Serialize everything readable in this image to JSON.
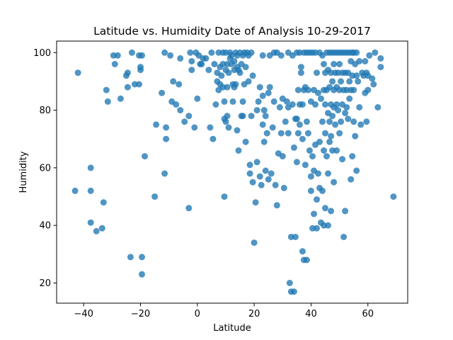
{
  "chart_data": {
    "type": "scatter",
    "title": "Latitude vs. Humidity Date of Analysis 10-29-2017",
    "xlabel": "Latitude",
    "ylabel": "Humidity",
    "xlim": [
      -49.5,
      74
    ],
    "ylim": [
      13,
      104
    ],
    "xticks": [
      -40,
      -20,
      0,
      20,
      40,
      60
    ],
    "yticks": [
      20,
      40,
      60,
      80,
      100
    ],
    "xtick_labels": [
      "−40",
      "−20",
      "0",
      "20",
      "40",
      "60"
    ],
    "ytick_labels": [
      "20",
      "40",
      "60",
      "80",
      "100"
    ],
    "grid": false,
    "legend": "none",
    "marker_color": "#1f77b4",
    "points": [
      [
        -43,
        52
      ],
      [
        -42,
        93
      ],
      [
        -37.5,
        60
      ],
      [
        -37.5,
        52
      ],
      [
        -37.5,
        41
      ],
      [
        -35.5,
        38
      ],
      [
        -33.5,
        39
      ],
      [
        -33,
        48
      ],
      [
        -32,
        87
      ],
      [
        -31.5,
        83
      ],
      [
        -29.5,
        99
      ],
      [
        -29,
        96
      ],
      [
        -28,
        99
      ],
      [
        -27,
        84
      ],
      [
        -25,
        92
      ],
      [
        -24.5,
        93
      ],
      [
        -24.5,
        88
      ],
      [
        -23.5,
        29
      ],
      [
        -23,
        100
      ],
      [
        -22,
        89
      ],
      [
        -20.5,
        99
      ],
      [
        -20,
        95
      ],
      [
        -20,
        94
      ],
      [
        -20.5,
        89
      ],
      [
        -19.5,
        99
      ],
      [
        -19.5,
        29
      ],
      [
        -19.5,
        23
      ],
      [
        -18.5,
        64
      ],
      [
        -15,
        50
      ],
      [
        -14.5,
        75
      ],
      [
        -12.5,
        86
      ],
      [
        -11.5,
        100
      ],
      [
        -11.5,
        58
      ],
      [
        -11,
        74
      ],
      [
        -11,
        70
      ],
      [
        -9.5,
        99
      ],
      [
        -9,
        83
      ],
      [
        -8.5,
        90
      ],
      [
        -7.5,
        82
      ],
      [
        -6.5,
        89
      ],
      [
        -6,
        98
      ],
      [
        -6,
        80
      ],
      [
        -4.5,
        76
      ],
      [
        -3,
        78
      ],
      [
        -3,
        46
      ],
      [
        -2.5,
        100
      ],
      [
        -2,
        97
      ],
      [
        -2,
        94
      ],
      [
        -1,
        74
      ],
      [
        -0.5,
        100
      ],
      [
        0,
        84
      ],
      [
        0.5,
        99
      ],
      [
        1,
        96
      ],
      [
        1.5,
        96
      ],
      [
        2,
        98
      ],
      [
        3,
        98
      ],
      [
        4,
        94
      ],
      [
        4.5,
        74
      ],
      [
        5,
        100
      ],
      [
        5.5,
        70
      ],
      [
        6,
        96
      ],
      [
        6.5,
        82
      ],
      [
        7,
        93
      ],
      [
        7,
        90
      ],
      [
        7.5,
        100
      ],
      [
        7.5,
        87
      ],
      [
        8,
        95
      ],
      [
        8,
        89
      ],
      [
        8.5,
        92
      ],
      [
        9,
        100
      ],
      [
        9,
        96
      ],
      [
        9,
        88
      ],
      [
        9.5,
        83
      ],
      [
        9.5,
        77
      ],
      [
        9.5,
        50
      ],
      [
        10,
        100
      ],
      [
        10,
        94
      ],
      [
        10,
        76
      ],
      [
        10.5,
        96
      ],
      [
        10.5,
        88
      ],
      [
        10.5,
        78
      ],
      [
        11,
        93
      ],
      [
        11,
        74
      ],
      [
        11.5,
        100
      ],
      [
        11.5,
        98
      ],
      [
        12,
        99
      ],
      [
        12,
        96
      ],
      [
        12.5,
        89
      ],
      [
        12.5,
        83
      ],
      [
        13,
        97
      ],
      [
        13,
        94
      ],
      [
        13,
        88
      ],
      [
        13.5,
        100
      ],
      [
        13.5,
        89
      ],
      [
        14,
        99
      ],
      [
        14,
        95
      ],
      [
        14,
        73
      ],
      [
        14.5,
        94
      ],
      [
        14.5,
        66
      ],
      [
        15,
        100
      ],
      [
        15,
        93
      ],
      [
        15.5,
        96
      ],
      [
        15.5,
        78
      ],
      [
        16,
        99
      ],
      [
        16,
        83
      ],
      [
        16,
        78
      ],
      [
        16.5,
        100
      ],
      [
        16.5,
        89
      ],
      [
        17,
        95
      ],
      [
        17,
        69
      ],
      [
        17.5,
        100
      ],
      [
        18,
        99
      ],
      [
        18,
        90
      ],
      [
        18.5,
        61
      ],
      [
        18.5,
        58
      ],
      [
        19,
        100
      ],
      [
        19,
        78
      ],
      [
        19.5,
        92
      ],
      [
        19.5,
        55
      ],
      [
        20,
        34
      ],
      [
        20.5,
        48
      ],
      [
        21,
        80
      ],
      [
        21,
        62
      ],
      [
        21.5,
        83
      ],
      [
        22,
        88
      ],
      [
        22,
        57
      ],
      [
        22.5,
        54
      ],
      [
        23,
        99
      ],
      [
        23,
        85
      ],
      [
        23,
        75
      ],
      [
        23.5,
        80
      ],
      [
        23.5,
        69
      ],
      [
        24,
        78
      ],
      [
        24,
        59
      ],
      [
        24.5,
        72
      ],
      [
        25,
        86
      ],
      [
        25,
        56
      ],
      [
        25.5,
        99
      ],
      [
        25.5,
        88
      ],
      [
        26,
        58
      ],
      [
        26.5,
        74
      ],
      [
        27,
        100
      ],
      [
        27,
        83
      ],
      [
        27.5,
        54
      ],
      [
        28,
        100
      ],
      [
        28,
        47
      ],
      [
        28.5,
        65
      ],
      [
        29,
        81
      ],
      [
        29.5,
        99
      ],
      [
        29.5,
        72
      ],
      [
        30,
        84
      ],
      [
        30,
        64
      ],
      [
        30.5,
        53
      ],
      [
        31,
        76
      ],
      [
        31.5,
        83
      ],
      [
        32,
        100
      ],
      [
        32,
        81
      ],
      [
        32,
        72
      ],
      [
        32.5,
        20
      ],
      [
        33,
        36
      ],
      [
        33,
        17
      ],
      [
        33.5,
        99
      ],
      [
        33.5,
        82
      ],
      [
        34,
        67
      ],
      [
        34,
        17
      ],
      [
        34.5,
        77
      ],
      [
        34.5,
        36
      ],
      [
        35,
        100
      ],
      [
        35,
        77
      ],
      [
        35,
        62
      ],
      [
        35.5,
        87
      ],
      [
        35.5,
        72
      ],
      [
        36,
        100
      ],
      [
        36,
        82
      ],
      [
        36,
        75
      ],
      [
        36.5,
        95
      ],
      [
        36.5,
        93
      ],
      [
        37,
        82
      ],
      [
        37,
        70
      ],
      [
        37,
        31
      ],
      [
        37.5,
        100
      ],
      [
        37.5,
        87
      ],
      [
        37.5,
        28
      ],
      [
        38,
        88
      ],
      [
        38,
        61
      ],
      [
        38.5,
        100
      ],
      [
        38.5,
        76
      ],
      [
        38.5,
        28
      ],
      [
        39,
        87
      ],
      [
        39,
        72
      ],
      [
        39.5,
        100
      ],
      [
        39.5,
        66
      ],
      [
        40,
        83
      ],
      [
        40,
        57
      ],
      [
        40,
        52
      ],
      [
        40.5,
        100
      ],
      [
        40.5,
        64
      ],
      [
        40.5,
        39
      ],
      [
        41,
        87
      ],
      [
        41,
        59
      ],
      [
        41,
        44
      ],
      [
        41.5,
        100
      ],
      [
        41.5,
        82
      ],
      [
        41.5,
        68
      ],
      [
        42,
        93
      ],
      [
        42,
        49
      ],
      [
        42,
        39
      ],
      [
        42.5,
        86
      ],
      [
        42.5,
        58
      ],
      [
        43,
        100
      ],
      [
        43,
        69
      ],
      [
        43,
        53
      ],
      [
        43.5,
        84
      ],
      [
        43.5,
        41
      ],
      [
        44,
        99
      ],
      [
        44,
        76
      ],
      [
        44,
        52
      ],
      [
        44.5,
        96
      ],
      [
        44.5,
        87
      ],
      [
        44.5,
        66
      ],
      [
        44.5,
        40
      ],
      [
        45,
        93
      ],
      [
        45,
        82
      ],
      [
        45,
        72
      ],
      [
        45,
        46
      ],
      [
        45.5,
        100
      ],
      [
        45.5,
        87
      ],
      [
        45.5,
        64
      ],
      [
        46,
        94
      ],
      [
        46,
        79
      ],
      [
        46,
        58
      ],
      [
        46,
        40
      ],
      [
        46.5,
        100
      ],
      [
        46.5,
        88
      ],
      [
        46.5,
        76
      ],
      [
        46.5,
        69
      ],
      [
        47,
        93
      ],
      [
        47,
        82
      ],
      [
        47,
        71
      ],
      [
        47,
        45
      ],
      [
        47.5,
        100
      ],
      [
        47.5,
        90
      ],
      [
        47.5,
        78
      ],
      [
        47.5,
        66
      ],
      [
        48,
        96
      ],
      [
        48,
        87
      ],
      [
        48,
        81
      ],
      [
        48,
        55
      ],
      [
        48.5,
        100
      ],
      [
        48.5,
        93
      ],
      [
        48.5,
        75
      ],
      [
        49,
        88
      ],
      [
        49,
        82
      ],
      [
        49,
        66
      ],
      [
        49.5,
        100
      ],
      [
        49.5,
        93
      ],
      [
        49.5,
        80
      ],
      [
        50,
        96
      ],
      [
        50,
        87
      ],
      [
        50,
        72
      ],
      [
        50.5,
        100
      ],
      [
        50.5,
        90
      ],
      [
        50.5,
        76
      ],
      [
        51,
        93
      ],
      [
        51,
        82
      ],
      [
        51,
        63
      ],
      [
        51.5,
        100
      ],
      [
        51.5,
        87
      ],
      [
        51.5,
        36
      ],
      [
        52,
        93
      ],
      [
        52,
        79
      ],
      [
        52,
        45
      ],
      [
        52.5,
        100
      ],
      [
        52.5,
        87
      ],
      [
        52.5,
        81
      ],
      [
        53,
        93
      ],
      [
        53,
        77
      ],
      [
        53.5,
        100
      ],
      [
        53.5,
        90
      ],
      [
        53.5,
        84
      ],
      [
        54,
        97
      ],
      [
        54,
        87
      ],
      [
        54,
        56
      ],
      [
        54.5,
        100
      ],
      [
        54.5,
        92
      ],
      [
        54.5,
        64
      ],
      [
        55,
        100
      ],
      [
        55,
        87
      ],
      [
        55,
        76
      ],
      [
        55.5,
        96
      ],
      [
        55.5,
        71
      ],
      [
        56,
        100
      ],
      [
        56,
        92
      ],
      [
        56,
        59
      ],
      [
        56.5,
        90
      ],
      [
        57,
        97
      ],
      [
        57,
        81
      ],
      [
        57.5,
        75
      ],
      [
        58,
        93
      ],
      [
        58.5,
        92
      ],
      [
        59,
        97
      ],
      [
        59,
        86
      ],
      [
        59.5,
        93
      ],
      [
        59.5,
        76
      ],
      [
        60,
        92
      ],
      [
        60.5,
        99
      ],
      [
        60,
        87
      ],
      [
        61.5,
        91
      ],
      [
        62,
        89
      ],
      [
        62.5,
        100
      ],
      [
        63.5,
        81
      ],
      [
        64.5,
        95
      ],
      [
        64.5,
        98
      ],
      [
        69,
        50
      ]
    ]
  }
}
